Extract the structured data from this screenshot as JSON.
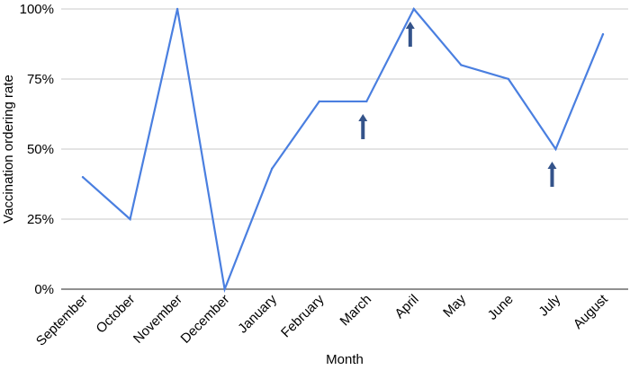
{
  "chart_data": {
    "type": "line",
    "title": "",
    "xlabel": "Month",
    "ylabel": "Vaccination ordering rate",
    "categories": [
      "September",
      "October",
      "November",
      "December",
      "January",
      "February",
      "March",
      "April",
      "May",
      "June",
      "July",
      "August"
    ],
    "series": [
      {
        "values": [
          40,
          25,
          100,
          0,
          43,
          67,
          67,
          100,
          80,
          75,
          50,
          91
        ]
      }
    ],
    "ylim": [
      0,
      100
    ],
    "yticks": [
      0,
      25,
      50,
      75,
      100
    ],
    "ytick_labels": [
      "0%",
      "25%",
      "50%",
      "75%",
      "100%"
    ],
    "grid": "horizontal",
    "legend": "none",
    "annotations": [
      {
        "type": "up-arrow",
        "category": "March"
      },
      {
        "type": "up-arrow",
        "category": "April"
      },
      {
        "type": "up-arrow",
        "category": "July"
      }
    ],
    "colors": {
      "line": "#4a7fe0",
      "arrow": "#34538a",
      "grid": "#c8c8c8",
      "axis": "#222222"
    }
  }
}
